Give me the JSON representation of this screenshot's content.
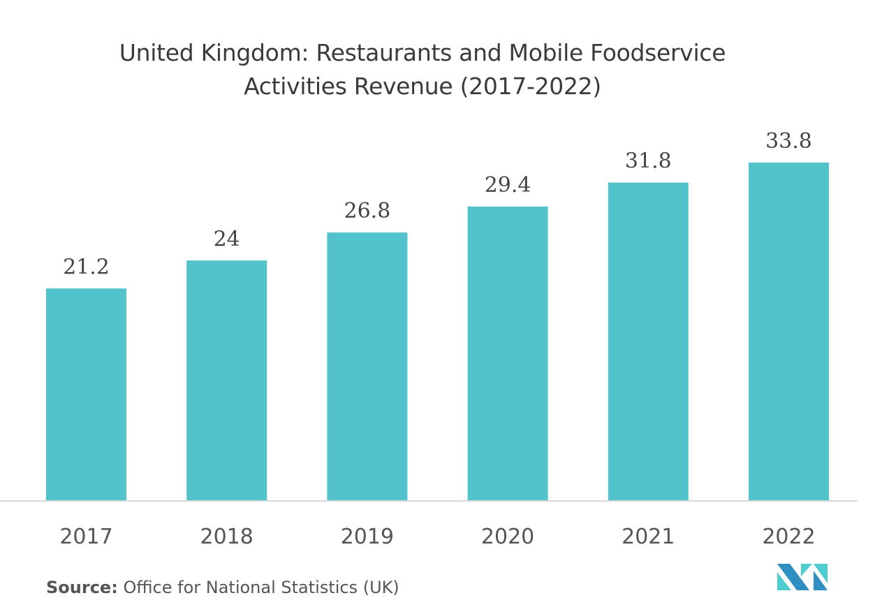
{
  "chart_data": {
    "type": "bar",
    "title": "United Kingdom: Restaurants and Mobile Foodservice Activities Revenue (2017-2022)",
    "title_lines": [
      "United Kingdom: Restaurants and Mobile Foodservice",
      "Activities Revenue (2017-2022)"
    ],
    "categories": [
      "2017",
      "2018",
      "2019",
      "2020",
      "2021",
      "2022"
    ],
    "values": [
      21.2,
      24,
      26.8,
      29.4,
      31.8,
      33.8
    ],
    "data_labels": [
      "21.2",
      "24",
      "26.8",
      "29.4",
      "31.8",
      "33.8"
    ],
    "xlabel": "",
    "ylabel": "",
    "ylim": [
      0,
      33.8
    ],
    "grid": false,
    "legend": "none",
    "bar_color": "#52c3ca"
  },
  "source": {
    "label": "Source:",
    "text": "Office for National Statistics (UK)"
  },
  "logo": {
    "name": "Mordor Intelligence logo",
    "colors": [
      "#2e8fc0",
      "#4ecdd0"
    ]
  }
}
